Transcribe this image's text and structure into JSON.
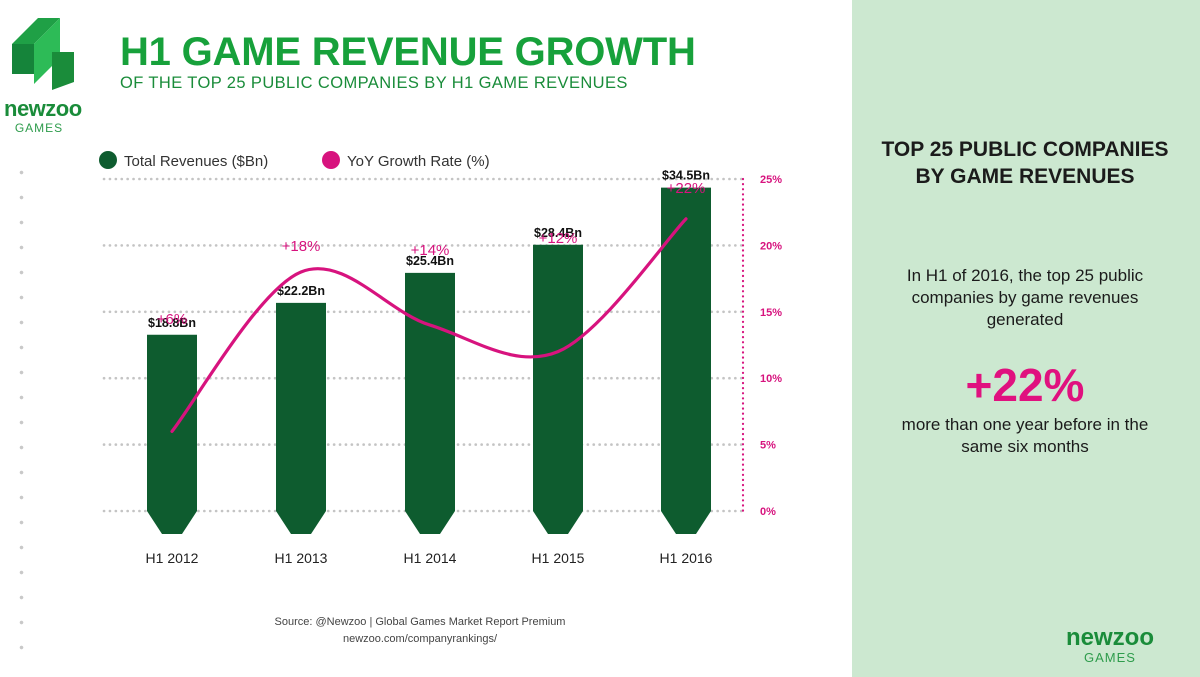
{
  "header": {
    "title": "H1 GAME REVENUE GROWTH",
    "subtitle": "OF THE TOP 25 PUBLIC COMPANIES BY H1 GAME REVENUES"
  },
  "brand": {
    "name": "newzoo",
    "sub": "GAMES",
    "colors": {
      "bar": "#0e5c2f",
      "line": "#d7137e",
      "accent": "#17a13b",
      "panel": "#cce8d0"
    }
  },
  "legend": [
    {
      "label": "Total Revenues ($Bn)",
      "color": "#0e5c2f"
    },
    {
      "label": "YoY Growth Rate (%)",
      "color": "#d7137e"
    }
  ],
  "chart_data": {
    "type": "bar",
    "categories": [
      "H1 2012",
      "H1 2013",
      "H1 2014",
      "H1 2015",
      "H1 2016"
    ],
    "series": [
      {
        "name": "Total Revenues ($Bn)",
        "type": "bar",
        "values": [
          18.8,
          22.2,
          25.4,
          28.4,
          34.5
        ],
        "labels": [
          "$18.8Bn",
          "$22.2Bn",
          "$25.4Bn",
          "$28.4Bn",
          "$34.5Bn"
        ]
      },
      {
        "name": "YoY Growth Rate (%)",
        "type": "line",
        "axis": "right",
        "values": [
          6,
          18,
          14,
          12,
          22
        ],
        "labels": [
          "+6%",
          "+18%",
          "+14%",
          "+12%",
          "+22%"
        ]
      }
    ],
    "y2_ticks": [
      "0%",
      "5%",
      "10%",
      "15%",
      "20%",
      "25%"
    ],
    "y2lim": [
      0,
      25
    ],
    "grid": true,
    "legend_position": "top-left"
  },
  "source": {
    "line1": "Source: @Newzoo | Global Games Market Report Premium",
    "line2": "newzoo.com/companyrankings/"
  },
  "side_panel": {
    "title": "TOP 25 PUBLIC COMPANIES BY GAME REVENUES",
    "text1": "In H1 of 2016, the top 25 public companies by game revenues generated",
    "highlight": "+22%",
    "text2": "more than one year before in the same six months"
  }
}
